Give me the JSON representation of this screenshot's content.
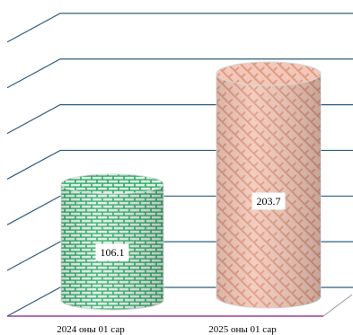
{
  "chart_data": {
    "type": "bar",
    "bar_shape": "cylinder",
    "view": "3d-perspective",
    "categories": [
      "2024 оны 01 сар",
      "2025 оны 01 сар"
    ],
    "values": [
      106.1,
      203.7
    ],
    "value_labels": [
      "106.1",
      "203.7"
    ],
    "ylim": [
      0,
      300
    ],
    "ygrid_step": 50,
    "grid": true,
    "legend": "none",
    "colors": {
      "bar_fills": [
        "#27a35a",
        "#e3a48f"
      ],
      "bar_outlines": [
        "#d8d8d8",
        "#d8d8d8"
      ],
      "gridline": "#2f5d7e",
      "axis_baseline": "#9b3f97"
    }
  }
}
